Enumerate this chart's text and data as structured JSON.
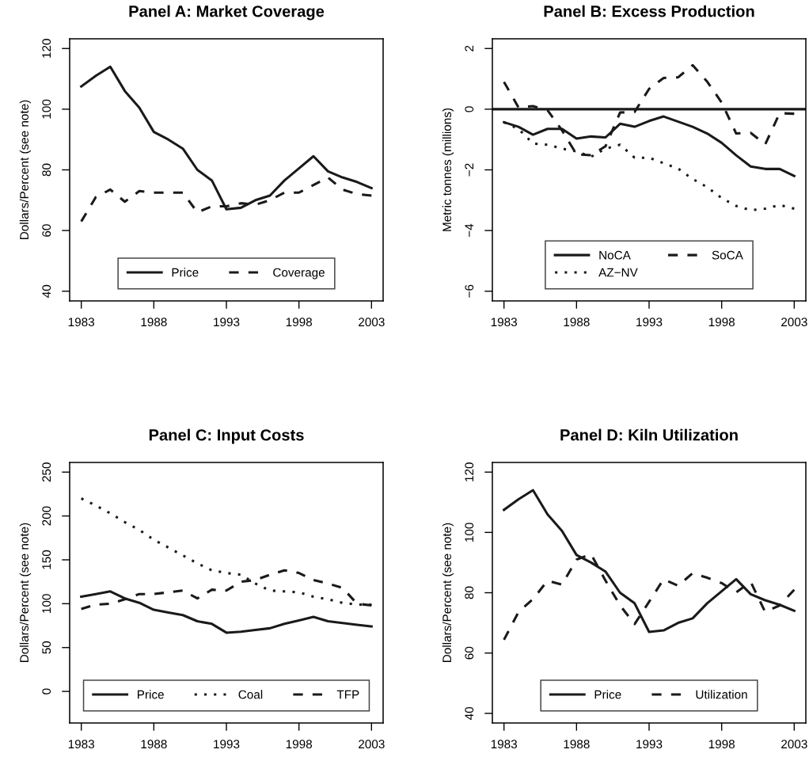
{
  "chart_data": [
    {
      "type": "line",
      "title": "Panel A: Market Coverage",
      "ylabel": "Dollars/Percent (see note)",
      "x": [
        1983,
        1984,
        1985,
        1986,
        1987,
        1988,
        1989,
        1990,
        1991,
        1992,
        1993,
        1994,
        1995,
        1996,
        1997,
        1998,
        1999,
        2000,
        2001,
        2002,
        2003
      ],
      "series": [
        {
          "name": "Price",
          "color": "#1a1a1a",
          "line_style": "solid",
          "values": [
            107.5,
            111,
            114,
            106,
            100.5,
            92.5,
            90,
            87,
            80,
            76.5,
            67,
            67.5,
            70,
            71.5,
            76.5,
            80.5,
            84.5,
            79.5,
            77.5,
            76,
            74
          ]
        },
        {
          "name": "Coverage",
          "color": "#1a1a1a",
          "line_style": "dashed",
          "values": [
            63,
            71,
            73.5,
            69.5,
            73,
            72.5,
            72.5,
            72.5,
            66,
            68,
            68,
            69,
            68.5,
            70,
            72.5,
            72.5,
            75,
            77.5,
            73.5,
            72,
            71.5
          ]
        }
      ],
      "xlim": [
        1982.2,
        2003.8
      ],
      "xticks": [
        1983,
        1988,
        1993,
        1998,
        2003
      ],
      "ylim": [
        36.8,
        123.2
      ],
      "yticks": [
        40,
        60,
        80,
        100,
        120
      ],
      "grid": false,
      "legend": "bottom"
    },
    {
      "type": "line",
      "title": "Panel B: Excess Production",
      "ylabel": "Metric tonnes (millions)",
      "x": [
        1983,
        1984,
        1985,
        1986,
        1987,
        1988,
        1989,
        1990,
        1991,
        1992,
        1993,
        1994,
        1995,
        1996,
        1997,
        1998,
        1999,
        2000,
        2001,
        2002,
        2003
      ],
      "series": [
        {
          "name": "NoCA",
          "color": "#1a1a1a",
          "line_style": "solid",
          "values": [
            -0.43,
            -0.58,
            -0.84,
            -0.65,
            -0.65,
            -0.97,
            -0.9,
            -0.93,
            -0.48,
            -0.58,
            -0.39,
            -0.24,
            -0.41,
            -0.58,
            -0.8,
            -1.11,
            -1.52,
            -1.89,
            -1.97,
            -1.97,
            -2.2
          ]
        },
        {
          "name": "SoCA",
          "color": "#1a1a1a",
          "line_style": "dashed",
          "values": [
            0.9,
            0.06,
            0.1,
            -0.03,
            -0.7,
            -1.49,
            -1.52,
            -1.22,
            -0.11,
            -0.09,
            0.67,
            1.03,
            1.05,
            1.45,
            0.91,
            0.22,
            -0.8,
            -0.78,
            -1.16,
            -0.13,
            -0.15
          ]
        },
        {
          "name": "AZ−NV",
          "color": "#1a1a1a",
          "line_style": "dotted",
          "values": [
            -0.43,
            -0.65,
            -1.13,
            -1.17,
            -1.3,
            -1.39,
            -1.57,
            -1.3,
            -1.17,
            -1.6,
            -1.6,
            -1.78,
            -1.96,
            -2.3,
            -2.57,
            -2.93,
            -3.19,
            -3.33,
            -3.28,
            -3.16,
            -3.28
          ]
        }
      ],
      "ref_lines": [
        {
          "axis": "y",
          "value": 0,
          "color": "#1a1a1a",
          "line_style": "solid"
        }
      ],
      "xlim": [
        1982.2,
        2003.8
      ],
      "xticks": [
        1983,
        1988,
        1993,
        1998,
        2003
      ],
      "ylim": [
        -6.32,
        2.32
      ],
      "yticks": [
        {
          "value": -6,
          "label": "−6"
        },
        {
          "value": -4,
          "label": "−4"
        },
        {
          "value": -2,
          "label": "−2"
        },
        0,
        2
      ],
      "grid": false,
      "legend": "bottom"
    },
    {
      "type": "line",
      "title": "Panel C: Input Costs",
      "ylabel": "Dollars/Percent (see note)",
      "x": [
        1983,
        1984,
        1985,
        1986,
        1987,
        1988,
        1989,
        1990,
        1991,
        1992,
        1993,
        1994,
        1995,
        1996,
        1997,
        1998,
        1999,
        2000,
        2001,
        2002,
        2003
      ],
      "series": [
        {
          "name": "Price",
          "color": "#1a1a1a",
          "line_style": "solid",
          "values": [
            108,
            111,
            114,
            106,
            101,
            93,
            90,
            87,
            80,
            77,
            67,
            68,
            70,
            72,
            77,
            81,
            85,
            80,
            78,
            76,
            74
          ]
        },
        {
          "name": "Coal",
          "color": "#1a1a1a",
          "line_style": "dotted",
          "values": [
            220,
            212,
            203,
            193,
            184,
            173,
            164,
            155,
            146,
            138,
            135,
            133,
            123,
            115,
            114,
            113,
            108,
            105,
            101,
            99,
            99
          ]
        },
        {
          "name": "TFP",
          "color": "#1a1a1a",
          "line_style": "dashed",
          "values": [
            94,
            99,
            100,
            105,
            111,
            111,
            113,
            115,
            106,
            116,
            115,
            125,
            127,
            133,
            138,
            135,
            127,
            123,
            118,
            100,
            98
          ]
        }
      ],
      "xlim": [
        1982.2,
        2003.8
      ],
      "xticks": [
        1983,
        1988,
        1993,
        1998,
        2003
      ],
      "ylim": [
        -36,
        261
      ],
      "yticks": [
        0,
        50,
        100,
        150,
        200,
        250
      ],
      "grid": false,
      "legend": "bottom"
    },
    {
      "type": "line",
      "title": "Panel D: Kiln Utilization",
      "ylabel": "Dollars/Percent (see note)",
      "x": [
        1983,
        1984,
        1985,
        1986,
        1987,
        1988,
        1989,
        1990,
        1991,
        1992,
        1993,
        1994,
        1995,
        1996,
        1997,
        1998,
        1999,
        2000,
        2001,
        2002,
        2003
      ],
      "series": [
        {
          "name": "Price",
          "color": "#1a1a1a",
          "line_style": "solid",
          "values": [
            107.5,
            111,
            114,
            106,
            100.5,
            92.5,
            90,
            87,
            80,
            76.5,
            67,
            67.5,
            70,
            71.5,
            76.5,
            80.5,
            84.5,
            79.5,
            77.5,
            76,
            74
          ]
        },
        {
          "name": "Utilization",
          "color": "#1a1a1a",
          "line_style": "dashed",
          "values": [
            64.4,
            73.6,
            77.9,
            84,
            82.7,
            91,
            92.8,
            84,
            75.8,
            69.6,
            77,
            84.5,
            82.3,
            86.5,
            85,
            83.2,
            80.1,
            83.6,
            73.6,
            75.8,
            81
          ]
        }
      ],
      "xlim": [
        1982.2,
        2003.8
      ],
      "xticks": [
        1983,
        1988,
        1993,
        1998,
        2003
      ],
      "ylim": [
        36.8,
        123.2
      ],
      "yticks": [
        40,
        60,
        80,
        100,
        120
      ],
      "grid": false,
      "legend": "bottom"
    }
  ]
}
